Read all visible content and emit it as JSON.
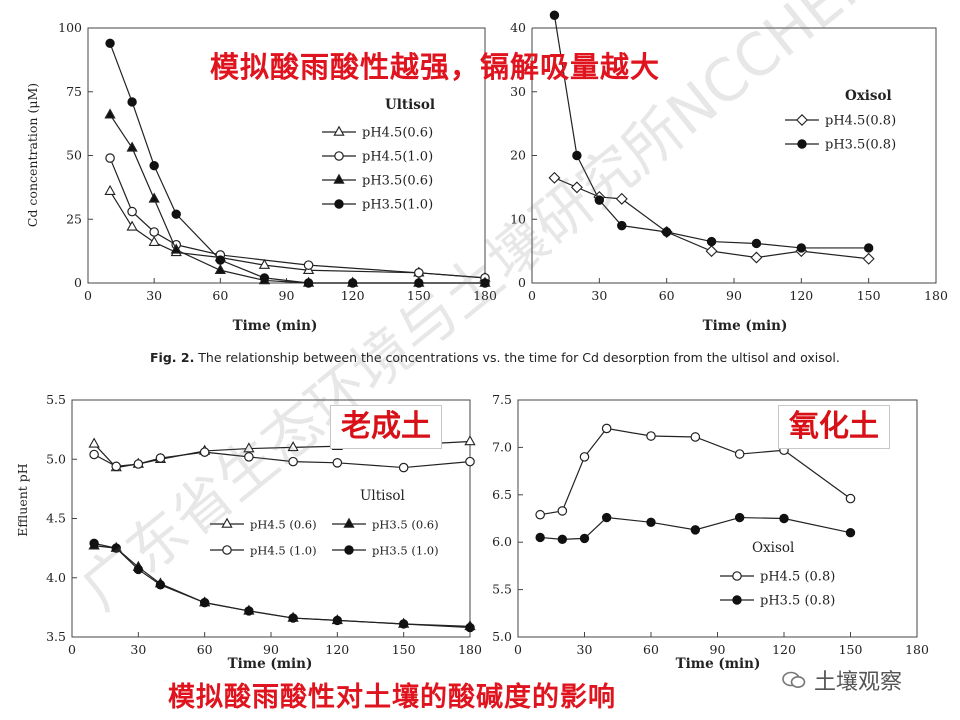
{
  "headline_top": "模拟酸雨酸性越强，镉解吸量越大",
  "headline_bottom": "模拟酸雨酸性对土壤的酸碱度的影响",
  "figure_caption": {
    "bold": "Fig. 2.",
    "text": " The relationship between the concentrations vs. the time for Cd desorption from the ultisol and oxisol."
  },
  "boxed_labels": {
    "ultisol_cn": "老成土",
    "oxisol_cn": "氧化土"
  },
  "watermark": "广东省生态环境与土壤研究所NCCHEN",
  "logo_text": "土壤观察",
  "chart_data": [
    {
      "id": "cd-ultisol",
      "type": "line",
      "title": "Ultisol",
      "xlabel": "Time (min)",
      "ylabel": "Cd concentration (μM)",
      "xlim": [
        0,
        180
      ],
      "ylim": [
        0,
        100
      ],
      "xticks": [
        0,
        30,
        60,
        90,
        120,
        150,
        180
      ],
      "yticks": [
        0,
        25,
        50,
        75,
        100
      ],
      "legend": "top-right",
      "series": [
        {
          "name": "pH4.5(0.6)",
          "marker": "triangle-open",
          "x": [
            10,
            20,
            30,
            40,
            60,
            80,
            100,
            150,
            180
          ],
          "y": [
            36,
            22,
            16,
            12,
            10,
            7,
            5,
            4,
            2
          ]
        },
        {
          "name": "pH4.5(1.0)",
          "marker": "circle-open",
          "x": [
            10,
            20,
            30,
            40,
            60,
            100,
            150,
            180
          ],
          "y": [
            49,
            28,
            20,
            15,
            11,
            7,
            4,
            2
          ]
        },
        {
          "name": "pH3.5(0.6)",
          "marker": "triangle-filled",
          "x": [
            10,
            20,
            30,
            40,
            60,
            80,
            100,
            120,
            150,
            180
          ],
          "y": [
            66,
            53,
            33,
            13,
            5,
            1,
            0,
            0,
            0,
            0
          ]
        },
        {
          "name": "pH3.5(1.0)",
          "marker": "circle-filled",
          "x": [
            10,
            20,
            30,
            40,
            60,
            80,
            100,
            120,
            150,
            180
          ],
          "y": [
            94,
            71,
            46,
            27,
            9,
            2,
            0,
            0,
            0,
            0
          ]
        }
      ]
    },
    {
      "id": "cd-oxisol",
      "type": "line",
      "title": "Oxisol",
      "xlabel": "Time (min)",
      "ylabel": "",
      "xlim": [
        0,
        180
      ],
      "ylim": [
        0,
        40
      ],
      "xticks": [
        0,
        30,
        60,
        90,
        120,
        150,
        180
      ],
      "yticks": [
        0,
        10,
        20,
        30,
        40
      ],
      "legend": "top-right",
      "series": [
        {
          "name": "pH4.5(0.8)",
          "marker": "diamond-open",
          "x": [
            10,
            20,
            30,
            40,
            60,
            80,
            100,
            120,
            150
          ],
          "y": [
            16.5,
            15,
            13.5,
            13.2,
            8,
            5,
            4,
            5,
            3.8
          ]
        },
        {
          "name": "pH3.5(0.8)",
          "marker": "circle-filled",
          "x": [
            10,
            20,
            30,
            40,
            60,
            80,
            100,
            120,
            150
          ],
          "y": [
            42,
            20,
            13,
            9,
            8,
            6.5,
            6.2,
            5.5,
            5.5
          ]
        }
      ]
    },
    {
      "id": "ph-ultisol",
      "type": "line",
      "title": "Ultisol",
      "xlabel": "Time (min)",
      "ylabel": "Effluent pH",
      "xlim": [
        0,
        180
      ],
      "ylim": [
        3.5,
        5.5
      ],
      "xticks": [
        0,
        30,
        60,
        90,
        120,
        150,
        180
      ],
      "yticks": [
        3.5,
        4.0,
        4.5,
        5.0,
        5.5
      ],
      "legend": "bottom-right",
      "series": [
        {
          "name": "pH4.5 (0.6)",
          "marker": "triangle-open",
          "x": [
            10,
            20,
            30,
            40,
            60,
            80,
            100,
            120,
            150,
            180
          ],
          "y": [
            5.13,
            4.93,
            4.96,
            5.0,
            5.07,
            5.09,
            5.1,
            5.11,
            5.12,
            5.15
          ]
        },
        {
          "name": "pH3.5 (0.6)",
          "marker": "triangle-filled",
          "x": [
            10,
            20,
            30,
            40,
            60,
            80,
            100,
            120,
            150,
            180
          ],
          "y": [
            4.27,
            4.25,
            4.09,
            3.95,
            3.79,
            3.72,
            3.66,
            3.64,
            3.61,
            3.59
          ]
        },
        {
          "name": "pH4.5 (1.0)",
          "marker": "circle-open",
          "x": [
            10,
            20,
            30,
            40,
            60,
            80,
            100,
            120,
            150,
            180
          ],
          "y": [
            5.04,
            4.94,
            4.96,
            5.01,
            5.06,
            5.02,
            4.98,
            4.97,
            4.93,
            4.98
          ]
        },
        {
          "name": "pH3.5 (1.0)",
          "marker": "circle-filled",
          "x": [
            10,
            20,
            30,
            40,
            60,
            80,
            100,
            120,
            150,
            180
          ],
          "y": [
            4.29,
            4.25,
            4.07,
            3.94,
            3.79,
            3.72,
            3.66,
            3.64,
            3.61,
            3.58
          ]
        }
      ]
    },
    {
      "id": "ph-oxisol",
      "type": "line",
      "title": "Oxisol",
      "xlabel": "Time (min)",
      "ylabel": "",
      "xlim": [
        0,
        180
      ],
      "ylim": [
        5.0,
        7.5
      ],
      "xticks": [
        0,
        30,
        60,
        90,
        120,
        150,
        180
      ],
      "yticks": [
        5.0,
        5.5,
        6.0,
        6.5,
        7.0,
        7.5
      ],
      "legend": "bottom-right",
      "series": [
        {
          "name": "pH4.5 (0.8)",
          "marker": "circle-open",
          "x": [
            10,
            20,
            30,
            40,
            60,
            80,
            100,
            120,
            150
          ],
          "y": [
            6.29,
            6.33,
            6.9,
            7.2,
            7.12,
            7.11,
            6.93,
            6.97,
            6.46
          ]
        },
        {
          "name": "pH3.5 (0.8)",
          "marker": "circle-filled",
          "x": [
            10,
            20,
            30,
            40,
            60,
            80,
            100,
            120,
            150
          ],
          "y": [
            6.05,
            6.03,
            6.04,
            6.26,
            6.21,
            6.13,
            6.26,
            6.25,
            6.1
          ]
        }
      ]
    }
  ]
}
